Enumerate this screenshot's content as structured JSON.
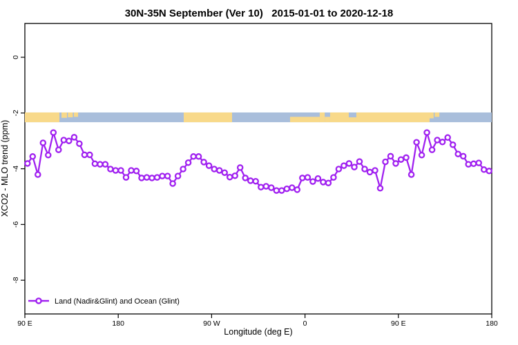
{
  "title": "30N-35N September (Ver 10)   2015-01-01 to 2020-12-18",
  "chart_data": {
    "type": "line",
    "title": "30N-35N September (Ver 10)   2015-01-01 to 2020-12-18",
    "xlabel": "Longitude (deg E)",
    "ylabel": "XCO2 - MLO trend (ppm)",
    "ylim": [
      -9.2,
      1.2
    ],
    "xlim_deg": [
      90,
      540
    ],
    "grid": false,
    "legend_position": "bottom-left",
    "y_ticks": [
      {
        "value": 0,
        "label": "0"
      },
      {
        "value": -2,
        "label": "-2"
      },
      {
        "value": -4,
        "label": "-4"
      },
      {
        "value": -6,
        "label": "-6"
      },
      {
        "value": -8,
        "label": "-8"
      }
    ],
    "x_ticks": [
      {
        "deg": 90,
        "label": "90 E"
      },
      {
        "deg": 180,
        "label": "180"
      },
      {
        "deg": 270,
        "label": "90 W"
      },
      {
        "deg": 360,
        "label": "0"
      },
      {
        "deg": 450,
        "label": "90 E"
      },
      {
        "deg": 540,
        "label": "180"
      }
    ],
    "series": [
      {
        "name": "Land (Nadir&Glint) and Ocean (Glint)",
        "color": "#A020F0",
        "marker": "open-circle",
        "x_deg": [
          92.5,
          97.5,
          102.5,
          107.5,
          112.5,
          117.5,
          122.5,
          127.5,
          132.5,
          137.5,
          142.5,
          147.5,
          152.5,
          157.5,
          162.5,
          167.5,
          172.5,
          177.5,
          182.5,
          187.5,
          192.5,
          197.5,
          202.5,
          207.5,
          212.5,
          217.5,
          222.5,
          227.5,
          232.5,
          237.5,
          242.5,
          247.5,
          252.5,
          257.5,
          262.5,
          267.5,
          272.5,
          277.5,
          282.5,
          287.5,
          292.5,
          297.5,
          302.5,
          307.5,
          312.5,
          317.5,
          322.5,
          327.5,
          332.5,
          337.5,
          342.5,
          347.5,
          352.5,
          357.5,
          362.5,
          367.5,
          372.5,
          377.5,
          382.5,
          387.5,
          392.5,
          397.5,
          402.5,
          407.5,
          412.5,
          417.5,
          422.5,
          427.5,
          432.5,
          437.5,
          442.5,
          447.5,
          452.5,
          457.5,
          462.5,
          467.5,
          472.5,
          477.5,
          482.5,
          487.5,
          492.5,
          497.5,
          502.5,
          507.5,
          512.5,
          517.5,
          522.5,
          527.5,
          532.5,
          537.5
        ],
        "values": [
          -3.81,
          -3.56,
          -4.21,
          -3.07,
          -3.51,
          -2.7,
          -3.32,
          -2.97,
          -3.0,
          -2.87,
          -3.1,
          -3.5,
          -3.5,
          -3.82,
          -3.84,
          -3.84,
          -4.01,
          -4.06,
          -4.06,
          -4.31,
          -4.06,
          -4.08,
          -4.33,
          -4.31,
          -4.33,
          -4.31,
          -4.26,
          -4.26,
          -4.53,
          -4.26,
          -4.01,
          -3.78,
          -3.56,
          -3.56,
          -3.76,
          -3.89,
          -4.01,
          -4.06,
          -4.14,
          -4.3,
          -4.25,
          -3.96,
          -4.33,
          -4.43,
          -4.45,
          -4.66,
          -4.63,
          -4.68,
          -4.78,
          -4.78,
          -4.72,
          -4.68,
          -4.75,
          -4.33,
          -4.31,
          -4.46,
          -4.35,
          -4.48,
          -4.51,
          -4.31,
          -4.01,
          -3.89,
          -3.81,
          -3.94,
          -3.74,
          -4.01,
          -4.12,
          -4.06,
          -4.7,
          -3.75,
          -3.55,
          -3.81,
          -3.67,
          -3.6,
          -4.21,
          -3.05,
          -3.51,
          -2.7,
          -3.32,
          -2.97,
          -3.04,
          -2.88,
          -3.14,
          -3.47,
          -3.55,
          -3.84,
          -3.82,
          -3.79,
          -4.03,
          -4.08
        ]
      }
    ],
    "map_band": {
      "description": "30N-35N latitude strip: land/ocean map drawn as horizontal band near -2.1 ppm",
      "value_top": -1.98,
      "value_bottom": -2.33,
      "ocean_color": "#A9BEDB",
      "land_color": "#F8D98A",
      "land_segments": [
        {
          "deg0": 90.0,
          "deg1": 123.3,
          "top": 0.0,
          "h": 1.0
        },
        {
          "deg0": 125.3,
          "deg1": 130.6,
          "top": 0.0,
          "h": 0.55
        },
        {
          "deg0": 131.5,
          "deg1": 136.2,
          "top": 0.0,
          "h": 0.5
        },
        {
          "deg0": 137.3,
          "deg1": 141.3,
          "top": 0.0,
          "h": 0.45
        },
        {
          "deg0": 243.1,
          "deg1": 289.7,
          "top": 0.0,
          "h": 1.0
        },
        {
          "deg0": 345.6,
          "deg1": 374.2,
          "top": 0.45,
          "h": 0.55
        },
        {
          "deg0": 374.2,
          "deg1": 379.0,
          "top": 0.0,
          "h": 1.0
        },
        {
          "deg0": 379.0,
          "deg1": 384.2,
          "top": 0.45,
          "h": 0.55
        },
        {
          "deg0": 384.2,
          "deg1": 402.2,
          "top": 0.0,
          "h": 1.0
        },
        {
          "deg0": 402.2,
          "deg1": 409.5,
          "top": 0.5,
          "h": 0.5
        },
        {
          "deg0": 409.5,
          "deg1": 480.1,
          "top": 0.0,
          "h": 1.0
        },
        {
          "deg0": 480.1,
          "deg1": 484.0,
          "top": 0.0,
          "h": 0.6
        },
        {
          "deg0": 485.0,
          "deg1": 489.5,
          "top": 0.0,
          "h": 0.45
        }
      ]
    },
    "legend": {
      "label": "Land (Nadir&Glint) and Ocean (Glint)"
    }
  }
}
